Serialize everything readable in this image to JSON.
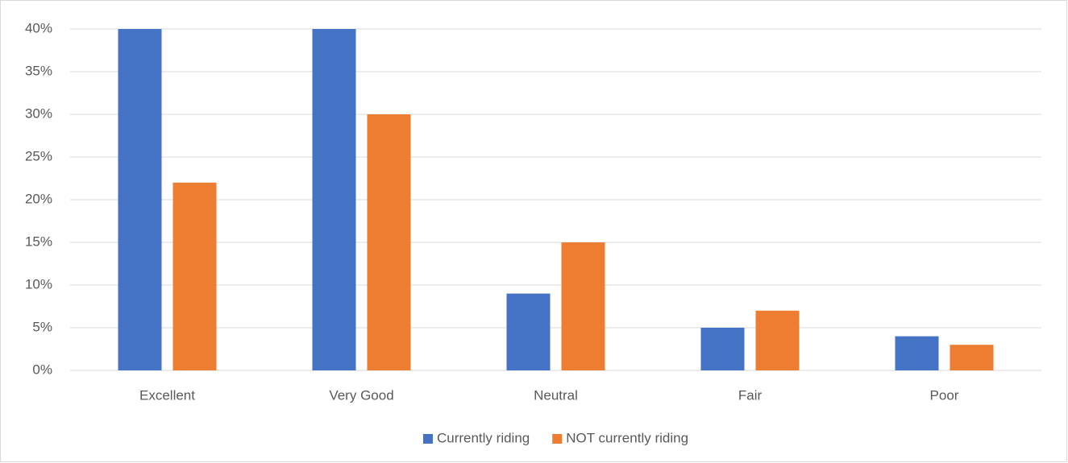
{
  "chart_data": {
    "type": "bar",
    "categories": [
      "Excellent",
      "Very Good",
      "Neutral",
      "Fair",
      "Poor"
    ],
    "series": [
      {
        "name": "Currently riding",
        "color": "#4472c4",
        "values": [
          40,
          40,
          9,
          5,
          4
        ]
      },
      {
        "name": "NOT currently riding",
        "color": "#ed7d31",
        "values": [
          22,
          30,
          15,
          7,
          3
        ]
      }
    ],
    "ylim": [
      0,
      40
    ],
    "yticks": [
      {
        "value": 0,
        "label": "0%"
      },
      {
        "value": 5,
        "label": "5%"
      },
      {
        "value": 10,
        "label": "10%"
      },
      {
        "value": 15,
        "label": "15%"
      },
      {
        "value": 20,
        "label": "20%"
      },
      {
        "value": 25,
        "label": "25%"
      },
      {
        "value": 30,
        "label": "30%"
      },
      {
        "value": 35,
        "label": "35%"
      },
      {
        "value": 40,
        "label": "40%"
      }
    ],
    "grid": true,
    "legend": "bottom"
  }
}
